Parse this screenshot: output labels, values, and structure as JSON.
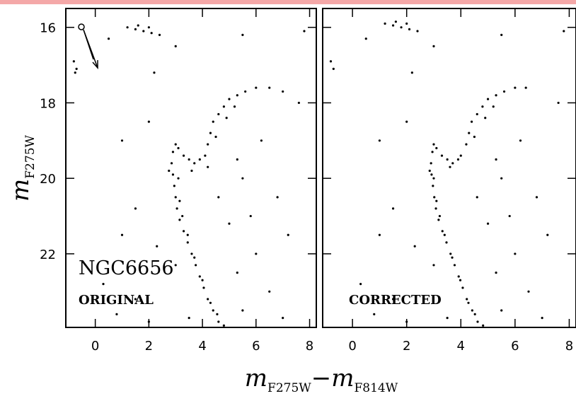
{
  "chart_data": [
    {
      "type": "scatter",
      "annotations": [
        "NGC6656",
        "ORIGINAL"
      ],
      "xlabel": {
        "text": "m",
        "sub": "F275W",
        "text2": "−m",
        "sub2": "F814W"
      },
      "ylabel": {
        "text": "m",
        "sub": "F275W"
      },
      "xlim": [
        -1.1,
        8.25
      ],
      "ylim": [
        23.95,
        15.5
      ],
      "xticks": [
        0,
        2,
        4,
        6,
        8
      ],
      "yticks": [
        16,
        18,
        20,
        22
      ],
      "color": "#000000",
      "x": [
        2.85,
        2.9,
        2.95,
        3.0,
        3.05,
        3.15,
        3.3,
        3.45,
        3.6,
        3.75,
        3.9,
        4.05,
        4.2,
        4.4,
        4.6,
        4.8,
        2.75,
        3.1,
        3.15,
        3.25,
        3.45,
        3.7,
        4.0,
        4.3,
        4.55,
        2.9,
        3.1,
        3.3,
        3.5,
        3.7,
        3.9,
        4.1,
        4.2,
        3.0,
        3.6,
        4.2,
        4.3,
        4.4,
        4.6,
        4.8,
        5.0,
        5.3,
        5.6,
        6.0,
        6.5,
        7.0,
        4.5,
        4.9,
        5.2,
        1.2,
        1.5,
        1.8,
        2.1,
        2.4,
        1.6,
        2.0,
        -0.8,
        -0.7,
        -0.75,
        0.5,
        3.0,
        5.5,
        7.8,
        2.2,
        7.6,
        2.0,
        1.0,
        6.2,
        5.5,
        6.8,
        1.5,
        5.0,
        7.2,
        2.3,
        6.0,
        5.3,
        0.3,
        6.5,
        1.5,
        5.5,
        0.8,
        2.0,
        7.0,
        3.0,
        5.8,
        1.0,
        4.6,
        5.3,
        3.5
      ],
      "y": [
        19.6,
        19.9,
        20.2,
        20.5,
        20.8,
        21.1,
        21.4,
        21.7,
        22.0,
        22.3,
        22.6,
        22.9,
        23.2,
        23.5,
        23.8,
        23.9,
        19.8,
        20.0,
        20.6,
        21.0,
        21.5,
        22.1,
        22.7,
        23.3,
        23.6,
        19.3,
        19.2,
        19.4,
        19.5,
        19.6,
        19.5,
        19.4,
        19.7,
        19.1,
        19.8,
        19.1,
        18.8,
        18.5,
        18.3,
        18.1,
        17.9,
        17.8,
        17.7,
        17.6,
        17.6,
        17.7,
        18.9,
        18.4,
        18.1,
        16.0,
        16.05,
        16.1,
        16.15,
        16.2,
        15.95,
        16.0,
        16.9,
        17.1,
        17.2,
        16.3,
        16.5,
        16.2,
        16.1,
        17.2,
        18.0,
        18.5,
        19.0,
        19.0,
        20.0,
        20.5,
        20.8,
        21.2,
        21.5,
        21.8,
        22.0,
        22.5,
        22.8,
        23.0,
        23.2,
        23.5,
        23.6,
        23.8,
        23.7,
        22.3,
        21.0,
        21.5,
        20.5,
        19.5,
        23.7
      ]
    },
    {
      "type": "scatter",
      "annotations": [
        "CORRECTED"
      ],
      "xlim": [
        -1.1,
        8.25
      ],
      "ylim": [
        23.95,
        15.5
      ],
      "xticks": [
        0,
        2,
        4,
        6,
        8
      ],
      "yticks": [
        16,
        18,
        20,
        22
      ],
      "color": "#000000",
      "x": [
        2.9,
        2.92,
        2.97,
        3.02,
        3.08,
        3.18,
        3.32,
        3.47,
        3.62,
        3.77,
        3.92,
        4.07,
        4.22,
        4.42,
        4.62,
        4.82,
        2.85,
        3.0,
        3.1,
        3.22,
        3.4,
        3.68,
        3.98,
        4.28,
        4.52,
        2.95,
        3.1,
        3.3,
        3.5,
        3.7,
        3.9,
        4.0,
        3.0,
        3.6,
        4.2,
        4.3,
        4.4,
        4.6,
        4.8,
        5.0,
        5.3,
        5.6,
        6.0,
        6.4,
        4.5,
        4.9,
        5.2,
        1.2,
        1.5,
        1.8,
        2.1,
        2.4,
        1.6,
        2.0,
        -0.8,
        -0.7,
        0.5,
        3.0,
        5.5,
        7.8,
        2.2,
        7.6,
        2.0,
        1.0,
        6.2,
        5.5,
        6.8,
        1.5,
        5.0,
        7.2,
        2.3,
        6.0,
        5.3,
        0.3,
        6.5,
        1.5,
        5.5,
        0.8,
        2.0,
        7.0,
        3.0,
        5.8,
        1.0,
        4.6,
        5.3,
        3.5
      ],
      "y": [
        19.6,
        19.9,
        20.2,
        20.5,
        20.8,
        21.1,
        21.4,
        21.7,
        22.0,
        22.3,
        22.6,
        22.9,
        23.2,
        23.5,
        23.8,
        23.9,
        19.8,
        20.0,
        20.6,
        21.0,
        21.5,
        22.1,
        22.7,
        23.3,
        23.6,
        19.3,
        19.2,
        19.4,
        19.5,
        19.6,
        19.5,
        19.4,
        19.1,
        19.7,
        19.1,
        18.8,
        18.5,
        18.3,
        18.1,
        17.9,
        17.8,
        17.7,
        17.6,
        17.6,
        18.9,
        18.4,
        18.1,
        15.9,
        15.95,
        16.0,
        16.05,
        16.1,
        15.85,
        15.9,
        16.9,
        17.1,
        16.3,
        16.5,
        16.2,
        16.1,
        17.2,
        18.0,
        18.5,
        19.0,
        19.0,
        20.0,
        20.5,
        20.8,
        21.2,
        21.5,
        21.8,
        22.0,
        22.5,
        22.8,
        23.0,
        23.2,
        23.5,
        23.6,
        23.8,
        23.7,
        22.3,
        21.0,
        21.5,
        20.5,
        19.5,
        23.7
      ]
    }
  ]
}
